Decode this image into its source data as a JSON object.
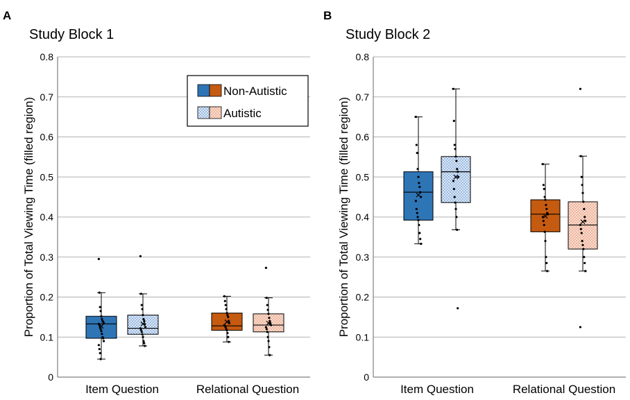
{
  "colors": {
    "non_autistic_item": "#2e75b6",
    "non_autistic_relational": "#c55a11",
    "autistic_item_fill": "#dce8f7",
    "autistic_item_dot": "#4a7fc1",
    "autistic_relational_fill": "#f9ddd0",
    "autistic_relational_dot": "#e0805a",
    "grid": "#b0b0b0",
    "axis": "#7f7f7f"
  },
  "legend": {
    "non_autistic": "Non-Autistic",
    "autistic": "Autistic"
  },
  "chart_data": [
    {
      "type": "box",
      "panel": "A",
      "title": "Study Block 1",
      "ylabel": "Proportion of Total Viewing Time (filled region)",
      "ylim": [
        0,
        0.8
      ],
      "yticks": [
        "0",
        "0.1",
        "0.2",
        "0.3",
        "0.4",
        "0.5",
        "0.6",
        "0.7",
        "0.8"
      ],
      "categories": [
        "Item Question",
        "Relational Question"
      ],
      "legend": true,
      "legend_position": "top-right",
      "boxes": [
        {
          "category": "Item Question",
          "group": "Non-Autistic",
          "style": "nonaut-item",
          "whisker_low": 0.045,
          "q1": 0.097,
          "median": 0.133,
          "q3": 0.152,
          "whisker_high": 0.211,
          "mean": 0.127,
          "points": [
            0.295,
            0.211,
            0.175,
            0.165,
            0.152,
            0.145,
            0.14,
            0.138,
            0.135,
            0.133,
            0.13,
            0.125,
            0.12,
            0.115,
            0.108,
            0.1,
            0.097,
            0.09,
            0.08,
            0.07,
            0.06,
            0.045
          ]
        },
        {
          "category": "Item Question",
          "group": "Autistic",
          "style": "aut-item",
          "whisker_low": 0.078,
          "q1": 0.107,
          "median": 0.122,
          "q3": 0.155,
          "whisker_high": 0.208,
          "mean": 0.133,
          "points": [
            0.302,
            0.208,
            0.18,
            0.17,
            0.155,
            0.145,
            0.14,
            0.132,
            0.125,
            0.122,
            0.118,
            0.113,
            0.107,
            0.1,
            0.09,
            0.085,
            0.078
          ]
        },
        {
          "category": "Relational Question",
          "group": "Non-Autistic",
          "style": "nonaut-rel",
          "whisker_low": 0.088,
          "q1": 0.117,
          "median": 0.128,
          "q3": 0.16,
          "whisker_high": 0.202,
          "mean": 0.138,
          "points": [
            0.202,
            0.19,
            0.18,
            0.17,
            0.16,
            0.155,
            0.15,
            0.14,
            0.135,
            0.13,
            0.128,
            0.125,
            0.12,
            0.117,
            0.11,
            0.1,
            0.088
          ]
        },
        {
          "category": "Relational Question",
          "group": "Autistic",
          "style": "aut-rel",
          "whisker_low": 0.055,
          "q1": 0.113,
          "median": 0.13,
          "q3": 0.158,
          "whisker_high": 0.198,
          "mean": 0.135,
          "points": [
            0.273,
            0.198,
            0.18,
            0.168,
            0.158,
            0.148,
            0.14,
            0.135,
            0.13,
            0.125,
            0.12,
            0.113,
            0.1,
            0.09,
            0.075,
            0.055
          ]
        }
      ]
    },
    {
      "type": "box",
      "panel": "B",
      "title": "Study Block 2",
      "ylabel": "Proportion of Total Viewing Time (filled region)",
      "ylim": [
        0,
        0.8
      ],
      "yticks": [
        "0",
        "0.1",
        "0.2",
        "0.3",
        "0.4",
        "0.5",
        "0.6",
        "0.7",
        "0.8"
      ],
      "categories": [
        "Item Question",
        "Relational Question"
      ],
      "legend": false,
      "boxes": [
        {
          "category": "Item Question",
          "group": "Non-Autistic",
          "style": "nonaut-item",
          "whisker_low": 0.333,
          "q1": 0.392,
          "median": 0.462,
          "q3": 0.513,
          "whisker_high": 0.65,
          "mean": 0.455,
          "points": [
            0.65,
            0.58,
            0.56,
            0.52,
            0.5,
            0.485,
            0.475,
            0.462,
            0.45,
            0.44,
            0.42,
            0.41,
            0.4,
            0.392,
            0.38,
            0.36,
            0.345,
            0.333
          ]
        },
        {
          "category": "Item Question",
          "group": "Autistic",
          "style": "aut-item",
          "whisker_low": 0.368,
          "q1": 0.436,
          "median": 0.513,
          "q3": 0.551,
          "whisker_high": 0.72,
          "mean": 0.5,
          "points": [
            0.72,
            0.64,
            0.58,
            0.57,
            0.551,
            0.54,
            0.52,
            0.513,
            0.5,
            0.49,
            0.47,
            0.45,
            0.436,
            0.42,
            0.4,
            0.368,
            0.172
          ]
        },
        {
          "category": "Relational Question",
          "group": "Non-Autistic",
          "style": "nonaut-rel",
          "whisker_low": 0.265,
          "q1": 0.363,
          "median": 0.407,
          "q3": 0.443,
          "whisker_high": 0.532,
          "mean": 0.402,
          "points": [
            0.532,
            0.48,
            0.47,
            0.45,
            0.443,
            0.43,
            0.42,
            0.41,
            0.407,
            0.4,
            0.39,
            0.38,
            0.363,
            0.34,
            0.3,
            0.285,
            0.265
          ]
        },
        {
          "category": "Relational Question",
          "group": "Autistic",
          "style": "aut-rel",
          "whisker_low": 0.265,
          "q1": 0.32,
          "median": 0.38,
          "q3": 0.438,
          "whisker_high": 0.552,
          "mean": 0.388,
          "points": [
            0.72,
            0.552,
            0.5,
            0.48,
            0.46,
            0.438,
            0.42,
            0.4,
            0.39,
            0.38,
            0.37,
            0.36,
            0.34,
            0.33,
            0.32,
            0.3,
            0.285,
            0.265,
            0.125
          ]
        }
      ]
    }
  ]
}
